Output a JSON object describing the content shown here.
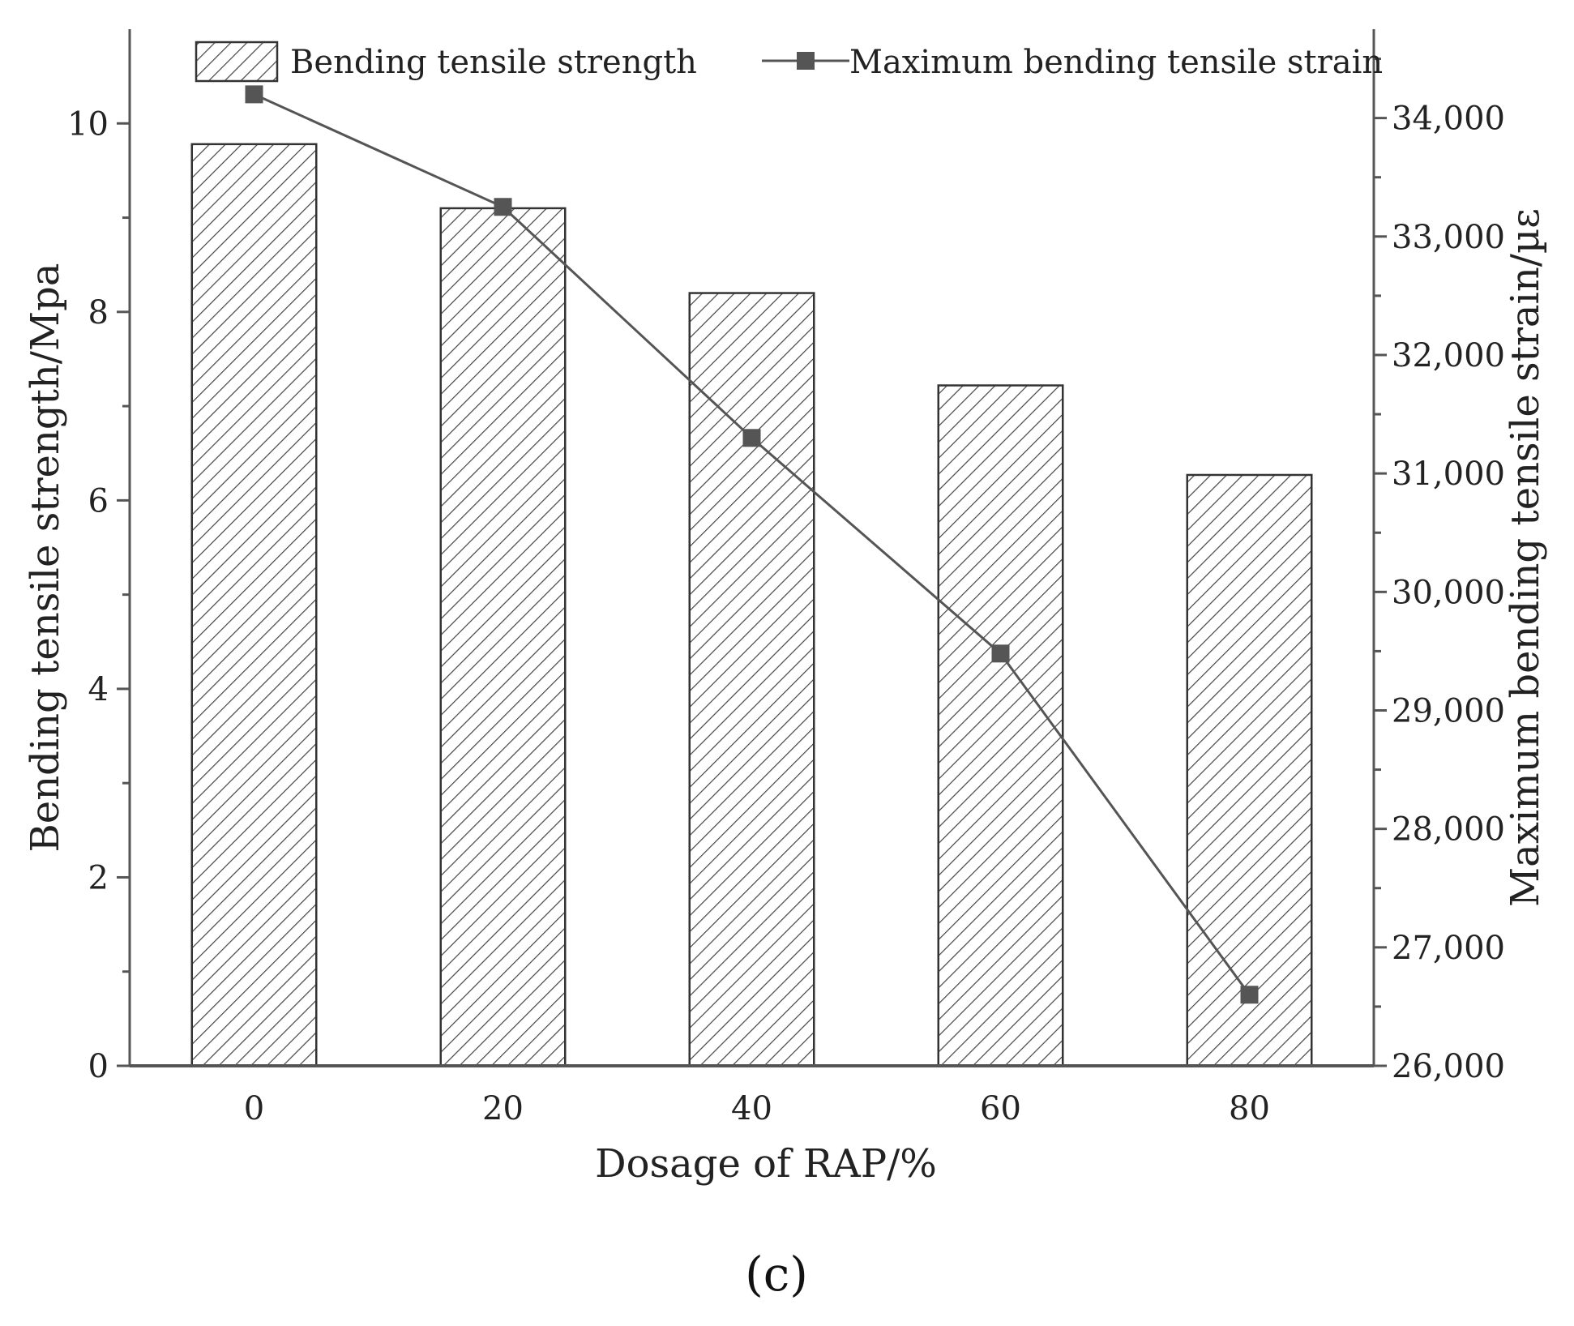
{
  "chart_data": {
    "type": "bar+line",
    "categories": [
      "0",
      "20",
      "40",
      "60",
      "80"
    ],
    "x": [
      0,
      20,
      40,
      60,
      80
    ],
    "xlabel": "Dosage of RAP/%",
    "series": [
      {
        "name": "Bending tensile strength",
        "kind": "bar",
        "axis": "left",
        "values": [
          9.78,
          9.1,
          8.2,
          7.22,
          6.27
        ]
      },
      {
        "name": "Maximum bending tensile strain",
        "kind": "line",
        "axis": "right",
        "marker": "square",
        "values": [
          34200,
          33250,
          31300,
          29480,
          26600
        ]
      }
    ],
    "y_left": {
      "label": "Bending tensile strength/Mpa",
      "ylim": [
        0,
        11
      ],
      "ticks": [
        0,
        2,
        4,
        6,
        8,
        10
      ],
      "tick_labels": [
        "0",
        "2",
        "4",
        "6",
        "8",
        "10"
      ]
    },
    "y_right": {
      "label": "Maximum bending tensile strain/µε",
      "ylim": [
        26000,
        34750
      ],
      "ticks": [
        26000,
        27000,
        28000,
        29000,
        30000,
        31000,
        32000,
        33000,
        34000
      ],
      "tick_labels": [
        "26,000",
        "27,000",
        "28,000",
        "29,000",
        "30,000",
        "31,000",
        "32,000",
        "33,000",
        "34,000"
      ]
    },
    "legend_position": "top",
    "grid": false,
    "panel_label": "(c)",
    "colors": {
      "axis": "#555555",
      "bar_stroke": "#333333",
      "hatch": "#444444",
      "line": "#555555",
      "marker": "#555555"
    }
  }
}
